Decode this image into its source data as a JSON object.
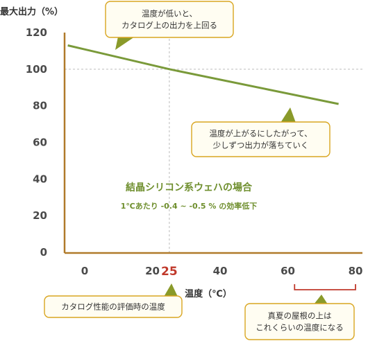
{
  "chart_data": {
    "type": "line",
    "title": "",
    "ylabel": "最大出力（%）",
    "xlabel": "温度（℃）",
    "xlim": [
      -7,
      80
    ],
    "ylim": [
      0,
      120
    ],
    "xticks": [
      0,
      20,
      40,
      60,
      80
    ],
    "yticks": [
      0,
      20,
      40,
      60,
      80,
      100,
      120
    ],
    "highlight_x": {
      "value": 25,
      "label": "25",
      "color": "#c0392b"
    },
    "reference_y": 100,
    "series": [
      {
        "x": [
          -5,
          25,
          75
        ],
        "y": [
          113,
          100,
          81
        ],
        "color": "#7a9a3a"
      }
    ],
    "range_bracket": {
      "from": 62,
      "to": 80,
      "color": "#c0392b"
    },
    "note": {
      "title": "結晶シリコン系ウェハの場合",
      "subtitle": "1℃あたり -0.4 ~ -0.5 % の効率低下"
    },
    "callouts": {
      "top": [
        "温度が低いと、",
        "カタログ上の出力を上回る"
      ],
      "right": [
        "温度が上がるにしたがって、",
        "少しずつ出力が落ちていく"
      ],
      "bottom_left": [
        "カタログ性能の評価時の温度"
      ],
      "bottom_right": [
        "真夏の屋根の上は",
        "これくらいの温度になる"
      ]
    },
    "colors": {
      "axis": "#b07a2a",
      "grid": "#bbbbbb",
      "line": "#7a9a3a",
      "callout_border": "#d9a520",
      "callout_fill": "#fffdf2",
      "pointer": "#8a9a2a"
    }
  }
}
